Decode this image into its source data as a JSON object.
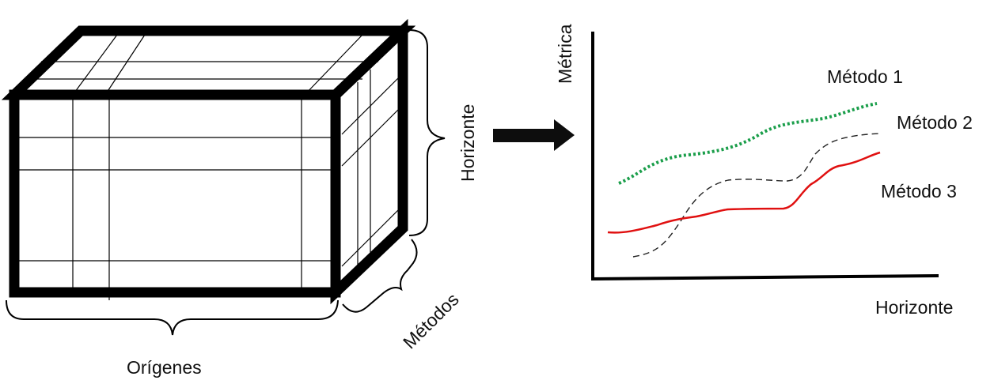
{
  "cube": {
    "label_bottom": "Orígenes",
    "label_right": "Horizonte",
    "label_depth": "Métodos"
  },
  "arrow": {
    "color": "#0d0d0d"
  },
  "chart_data": {
    "type": "line",
    "xlabel": "Horizonte",
    "ylabel": "Métrica",
    "series": [
      {
        "name": "Método 1",
        "style": "dotted",
        "color": "#1a9e4a"
      },
      {
        "name": "Método 2",
        "style": "dashed",
        "color": "#222222"
      },
      {
        "name": "Método 3",
        "style": "solid",
        "color": "#e01010"
      }
    ]
  }
}
